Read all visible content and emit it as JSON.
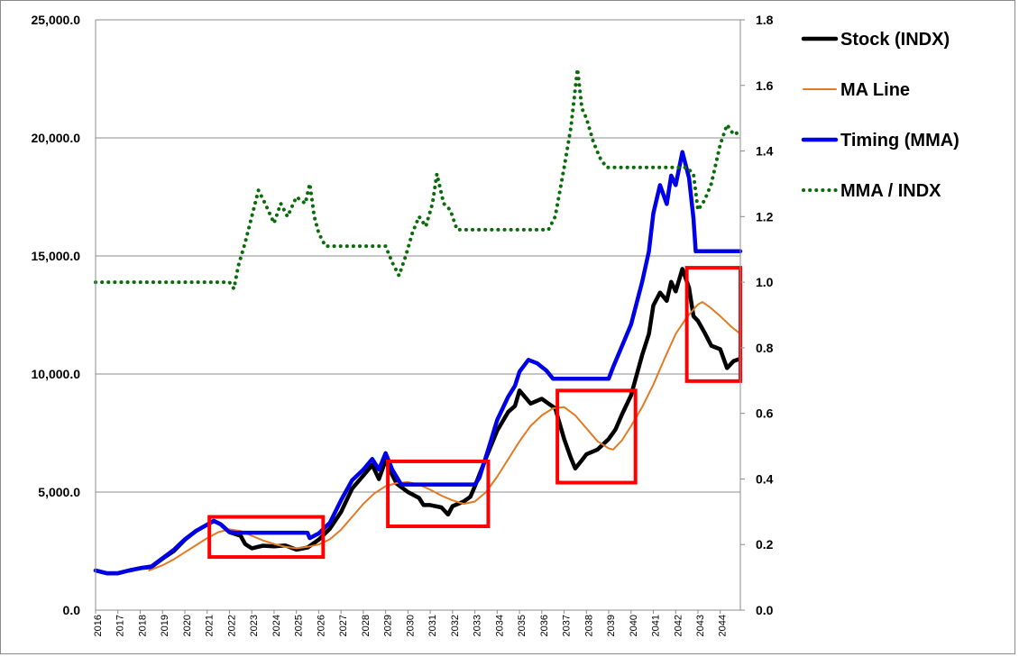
{
  "chart_data": {
    "type": "line",
    "title": "",
    "xlabel": "",
    "ylabel": "",
    "x_categories": [
      "2016",
      "2017",
      "2018",
      "2019",
      "2020",
      "2021",
      "2022",
      "2023",
      "2024",
      "2025",
      "2026",
      "2027",
      "2028",
      "2029",
      "2030",
      "2031",
      "2032",
      "2033",
      "2034",
      "2035",
      "2036",
      "2037",
      "2038",
      "2039",
      "2040",
      "2041",
      "2042",
      "2043",
      "2044"
    ],
    "x_range": [
      2016.0,
      2044.9
    ],
    "y_left": {
      "range": [
        0,
        25000
      ],
      "ticks": [
        "0.0",
        "5,000.0",
        "10,000.0",
        "15,000.0",
        "20,000.0",
        "25,000.0"
      ]
    },
    "y_right": {
      "range": [
        0,
        1.8
      ],
      "ticks": [
        "0.0",
        "0.2",
        "0.4",
        "0.6",
        "0.8",
        "1.0",
        "1.2",
        "1.4",
        "1.6",
        "1.8"
      ]
    },
    "grid": "horizontal",
    "legend_position": "right",
    "series": [
      {
        "name": "Stock (INDX)",
        "axis": "left",
        "color": "#000000",
        "style": "solid-thick",
        "points": [
          [
            2016.0,
            1680
          ],
          [
            2016.5,
            1560
          ],
          [
            2017.0,
            1560
          ],
          [
            2017.5,
            1680
          ],
          [
            2018.0,
            1780
          ],
          [
            2018.5,
            1830
          ],
          [
            2019.0,
            2180
          ],
          [
            2019.5,
            2500
          ],
          [
            2020.0,
            2980
          ],
          [
            2020.5,
            3350
          ],
          [
            2021.0,
            3620
          ],
          [
            2021.3,
            3780
          ],
          [
            2021.6,
            3640
          ],
          [
            2022.0,
            3300
          ],
          [
            2022.5,
            3150
          ],
          [
            2022.7,
            2800
          ],
          [
            2023.0,
            2620
          ],
          [
            2023.5,
            2730
          ],
          [
            2024.0,
            2700
          ],
          [
            2024.5,
            2740
          ],
          [
            2025.0,
            2560
          ],
          [
            2025.5,
            2650
          ],
          [
            2026.0,
            2980
          ],
          [
            2026.5,
            3450
          ],
          [
            2027.0,
            4150
          ],
          [
            2027.5,
            5150
          ],
          [
            2028.0,
            5700
          ],
          [
            2028.4,
            6150
          ],
          [
            2028.7,
            5550
          ],
          [
            2029.0,
            6350
          ],
          [
            2029.2,
            5900
          ],
          [
            2029.5,
            5350
          ],
          [
            2030.0,
            5000
          ],
          [
            2030.5,
            4750
          ],
          [
            2030.7,
            4450
          ],
          [
            2031.0,
            4450
          ],
          [
            2031.5,
            4350
          ],
          [
            2031.8,
            4050
          ],
          [
            2032.0,
            4400
          ],
          [
            2032.5,
            4600
          ],
          [
            2032.8,
            4800
          ],
          [
            2033.0,
            5250
          ],
          [
            2033.5,
            6450
          ],
          [
            2034.0,
            7600
          ],
          [
            2034.5,
            8400
          ],
          [
            2034.8,
            8650
          ],
          [
            2035.0,
            9300
          ],
          [
            2035.5,
            8750
          ],
          [
            2036.0,
            8950
          ],
          [
            2036.3,
            8750
          ],
          [
            2036.6,
            8550
          ],
          [
            2037.0,
            7250
          ],
          [
            2037.3,
            6450
          ],
          [
            2037.5,
            6000
          ],
          [
            2037.8,
            6350
          ],
          [
            2038.0,
            6600
          ],
          [
            2038.5,
            6800
          ],
          [
            2039.0,
            7250
          ],
          [
            2039.3,
            7650
          ],
          [
            2039.6,
            8300
          ],
          [
            2040.0,
            9100
          ],
          [
            2040.5,
            10800
          ],
          [
            2040.8,
            11700
          ],
          [
            2041.0,
            12900
          ],
          [
            2041.3,
            13450
          ],
          [
            2041.6,
            13100
          ],
          [
            2041.8,
            13900
          ],
          [
            2042.0,
            13500
          ],
          [
            2042.3,
            14450
          ],
          [
            2042.6,
            13650
          ],
          [
            2042.8,
            12450
          ],
          [
            2043.0,
            12250
          ],
          [
            2043.3,
            11750
          ],
          [
            2043.6,
            11200
          ],
          [
            2044.0,
            11050
          ],
          [
            2044.3,
            10250
          ],
          [
            2044.6,
            10550
          ],
          [
            2044.9,
            10650
          ]
        ]
      },
      {
        "name": "MA Line",
        "axis": "left",
        "color": "#e07b24",
        "style": "solid-thin",
        "points": [
          [
            2018.4,
            1680
          ],
          [
            2019.0,
            1900
          ],
          [
            2019.5,
            2150
          ],
          [
            2020.0,
            2450
          ],
          [
            2020.5,
            2750
          ],
          [
            2021.0,
            3050
          ],
          [
            2021.5,
            3300
          ],
          [
            2022.0,
            3420
          ],
          [
            2022.5,
            3350
          ],
          [
            2023.0,
            3150
          ],
          [
            2023.5,
            2950
          ],
          [
            2024.0,
            2800
          ],
          [
            2024.5,
            2680
          ],
          [
            2025.0,
            2620
          ],
          [
            2025.5,
            2680
          ],
          [
            2026.0,
            2780
          ],
          [
            2026.5,
            3000
          ],
          [
            2027.0,
            3400
          ],
          [
            2027.5,
            3950
          ],
          [
            2028.0,
            4500
          ],
          [
            2028.5,
            4950
          ],
          [
            2029.0,
            5250
          ],
          [
            2029.5,
            5380
          ],
          [
            2030.0,
            5420
          ],
          [
            2030.5,
            5320
          ],
          [
            2031.0,
            5100
          ],
          [
            2031.5,
            4850
          ],
          [
            2032.0,
            4650
          ],
          [
            2032.5,
            4500
          ],
          [
            2033.0,
            4600
          ],
          [
            2033.5,
            5000
          ],
          [
            2034.0,
            5650
          ],
          [
            2034.5,
            6400
          ],
          [
            2035.0,
            7150
          ],
          [
            2035.5,
            7800
          ],
          [
            2036.0,
            8250
          ],
          [
            2036.5,
            8550
          ],
          [
            2037.0,
            8600
          ],
          [
            2037.5,
            8250
          ],
          [
            2038.0,
            7700
          ],
          [
            2038.5,
            7150
          ],
          [
            2039.0,
            6850
          ],
          [
            2039.2,
            6800
          ],
          [
            2039.6,
            7200
          ],
          [
            2040.0,
            7800
          ],
          [
            2040.5,
            8600
          ],
          [
            2041.0,
            9550
          ],
          [
            2041.5,
            10650
          ],
          [
            2042.0,
            11700
          ],
          [
            2042.5,
            12400
          ],
          [
            2043.0,
            12950
          ],
          [
            2043.2,
            13050
          ],
          [
            2043.5,
            12850
          ],
          [
            2044.0,
            12450
          ],
          [
            2044.5,
            12000
          ],
          [
            2044.9,
            11700
          ]
        ]
      },
      {
        "name": "Timing (MMA)",
        "axis": "left",
        "color": "#0000e6",
        "style": "solid-thick",
        "points": [
          [
            2016.0,
            1680
          ],
          [
            2016.5,
            1560
          ],
          [
            2017.0,
            1560
          ],
          [
            2017.5,
            1680
          ],
          [
            2018.0,
            1780
          ],
          [
            2018.5,
            1850
          ],
          [
            2019.0,
            2200
          ],
          [
            2019.5,
            2550
          ],
          [
            2020.0,
            3000
          ],
          [
            2020.5,
            3350
          ],
          [
            2021.0,
            3620
          ],
          [
            2021.3,
            3780
          ],
          [
            2021.6,
            3640
          ],
          [
            2022.0,
            3300
          ],
          [
            2022.3,
            3280
          ],
          [
            2025.5,
            3280
          ],
          [
            2025.6,
            3050
          ],
          [
            2026.0,
            3250
          ],
          [
            2026.5,
            3700
          ],
          [
            2027.0,
            4650
          ],
          [
            2027.5,
            5500
          ],
          [
            2028.0,
            5950
          ],
          [
            2028.4,
            6400
          ],
          [
            2028.7,
            5950
          ],
          [
            2029.0,
            6650
          ],
          [
            2029.3,
            5950
          ],
          [
            2029.7,
            5320
          ],
          [
            2033.0,
            5320
          ],
          [
            2033.2,
            5600
          ],
          [
            2033.6,
            6800
          ],
          [
            2034.0,
            8050
          ],
          [
            2034.5,
            9050
          ],
          [
            2034.8,
            9500
          ],
          [
            2035.0,
            10100
          ],
          [
            2035.4,
            10600
          ],
          [
            2035.8,
            10450
          ],
          [
            2036.2,
            10150
          ],
          [
            2036.5,
            9800
          ],
          [
            2039.0,
            9800
          ],
          [
            2039.2,
            10300
          ],
          [
            2039.6,
            11200
          ],
          [
            2040.0,
            12100
          ],
          [
            2040.5,
            13900
          ],
          [
            2040.8,
            15200
          ],
          [
            2041.0,
            16800
          ],
          [
            2041.3,
            18000
          ],
          [
            2041.6,
            17200
          ],
          [
            2041.8,
            18400
          ],
          [
            2042.0,
            18000
          ],
          [
            2042.3,
            19400
          ],
          [
            2042.6,
            18300
          ],
          [
            2042.8,
            16600
          ],
          [
            2042.9,
            15200
          ],
          [
            2044.9,
            15200
          ]
        ]
      },
      {
        "name": "MMA / INDX",
        "axis": "right",
        "color": "#0a6b0a",
        "style": "dotted",
        "points": [
          [
            2016.0,
            1.0
          ],
          [
            2022.0,
            1.0
          ],
          [
            2022.2,
            0.98
          ],
          [
            2022.4,
            1.05
          ],
          [
            2022.7,
            1.12
          ],
          [
            2023.0,
            1.2
          ],
          [
            2023.3,
            1.28
          ],
          [
            2023.6,
            1.24
          ],
          [
            2024.0,
            1.18
          ],
          [
            2024.3,
            1.24
          ],
          [
            2024.6,
            1.2
          ],
          [
            2025.0,
            1.26
          ],
          [
            2025.4,
            1.24
          ],
          [
            2025.6,
            1.3
          ],
          [
            2025.8,
            1.2
          ],
          [
            2026.0,
            1.15
          ],
          [
            2026.3,
            1.11
          ],
          [
            2029.0,
            1.11
          ],
          [
            2029.3,
            1.06
          ],
          [
            2029.6,
            1.02
          ],
          [
            2029.9,
            1.08
          ],
          [
            2030.2,
            1.15
          ],
          [
            2030.5,
            1.2
          ],
          [
            2030.8,
            1.17
          ],
          [
            2031.1,
            1.24
          ],
          [
            2031.3,
            1.33
          ],
          [
            2031.6,
            1.24
          ],
          [
            2031.9,
            1.22
          ],
          [
            2032.2,
            1.16
          ],
          [
            2036.3,
            1.16
          ],
          [
            2036.6,
            1.2
          ],
          [
            2037.0,
            1.35
          ],
          [
            2037.3,
            1.47
          ],
          [
            2037.6,
            1.65
          ],
          [
            2037.8,
            1.53
          ],
          [
            2038.0,
            1.5
          ],
          [
            2038.3,
            1.43
          ],
          [
            2038.6,
            1.38
          ],
          [
            2038.9,
            1.35
          ],
          [
            2042.5,
            1.35
          ],
          [
            2042.8,
            1.33
          ],
          [
            2043.0,
            1.22
          ],
          [
            2043.3,
            1.25
          ],
          [
            2043.6,
            1.3
          ],
          [
            2044.0,
            1.42
          ],
          [
            2044.3,
            1.48
          ],
          [
            2044.6,
            1.45
          ],
          [
            2044.9,
            1.46
          ]
        ]
      }
    ],
    "highlight_boxes": [
      {
        "x": [
          2021.1,
          2026.2
        ],
        "y": [
          2250,
          3950
        ],
        "color": "#ff0000"
      },
      {
        "x": [
          2029.1,
          2033.6
        ],
        "y": [
          3550,
          6300
        ],
        "color": "#ff0000"
      },
      {
        "x": [
          2036.7,
          2040.2
        ],
        "y": [
          5400,
          9300
        ],
        "color": "#ff0000"
      },
      {
        "x": [
          2042.5,
          2044.9
        ],
        "y": [
          9700,
          14500
        ],
        "color": "#ff0000"
      }
    ]
  }
}
